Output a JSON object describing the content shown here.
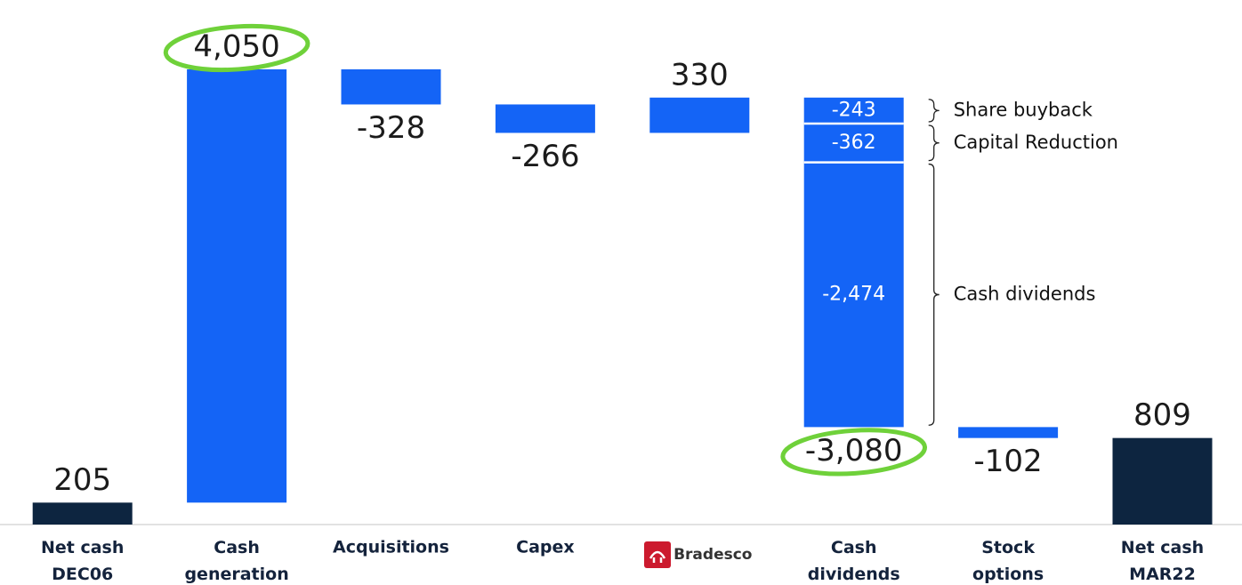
{
  "chart_data": {
    "type": "waterfall",
    "categories": [
      "Net cash DEC06",
      "Cash generation",
      "Acquisitions",
      "Capex",
      "Bradesco",
      "Cash dividends",
      "Stock options",
      "Net cash MAR22"
    ],
    "values": [
      205,
      4050,
      -328,
      -266,
      330,
      -3080,
      -102,
      809
    ],
    "value_labels": [
      "205",
      "4,050",
      "-328",
      "-266",
      "330",
      "-3,080",
      "-102",
      "809"
    ],
    "color": "#1464f6",
    "total_color": "#0d2540",
    "highlight_color": "#6fd13a",
    "highlight": [
      false,
      true,
      false,
      false,
      false,
      true,
      false,
      false
    ],
    "segments": [
      null,
      null,
      null,
      null,
      null,
      {
        "names": [
          "Share buyback",
          "Capital Reduction",
          "Cash dividends"
        ],
        "values": [
          -243,
          -362,
          -2474
        ],
        "value_labels": [
          "-243",
          "-362",
          "-2,474"
        ]
      },
      null,
      null
    ]
  }
}
